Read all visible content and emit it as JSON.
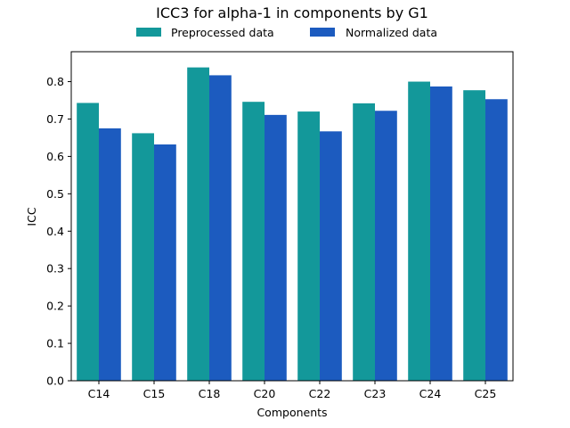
{
  "chart_data": {
    "type": "bar",
    "title": "ICC3 for alpha-1 in components by G1",
    "xlabel": "Components",
    "ylabel": "ICC",
    "categories": [
      "C14",
      "C15",
      "C18",
      "C20",
      "C22",
      "C23",
      "C24",
      "C25"
    ],
    "series": [
      {
        "name": "Preprocessed data",
        "color": "#13989a",
        "values": [
          0.743,
          0.662,
          0.838,
          0.746,
          0.72,
          0.742,
          0.8,
          0.777
        ]
      },
      {
        "name": "Normalized data",
        "color": "#1c5bbf",
        "values": [
          0.675,
          0.632,
          0.817,
          0.711,
          0.667,
          0.722,
          0.787,
          0.753
        ]
      }
    ],
    "ylim": [
      0,
      0.88
    ],
    "yticks": [
      0.0,
      0.1,
      0.2,
      0.3,
      0.4,
      0.5,
      0.6,
      0.7,
      0.8
    ],
    "grid": false,
    "legend_position": "top-center"
  }
}
